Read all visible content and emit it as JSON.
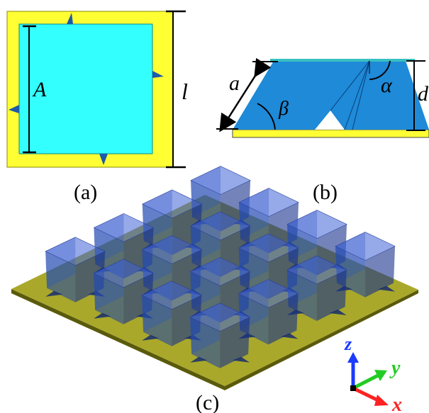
{
  "panels": {
    "a": {
      "caption": "(a)",
      "dim_inner": "A",
      "dim_outer": "l"
    },
    "b": {
      "caption": "(b)",
      "dim_slant": "a",
      "angle_base": "β",
      "angle_top": "α",
      "dim_height": "d"
    },
    "c": {
      "caption": "(c)",
      "axes": {
        "z": "z",
        "y": "y",
        "x": "x"
      },
      "grid_rows": 4,
      "grid_cols": 4
    }
  },
  "colors": {
    "yellow": "#ffff33",
    "cyan": "#33ffff",
    "blue": "#1e8ad8",
    "dark_blue": "#1f5aa8",
    "black": "#000000",
    "axis_z": "#1a3aff",
    "axis_y": "#22cc22",
    "axis_x": "#ff2222",
    "substrate": "#8a8a1a"
  }
}
